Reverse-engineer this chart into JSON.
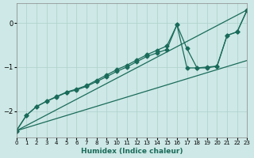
{
  "xlabel": "Humidex (Indice chaleur)",
  "xlim": [
    0,
    23
  ],
  "ylim": [
    -2.6,
    0.45
  ],
  "yticks": [
    0,
    -1,
    -2
  ],
  "xticks": [
    0,
    1,
    2,
    3,
    4,
    5,
    6,
    7,
    8,
    9,
    10,
    11,
    12,
    13,
    14,
    15,
    16,
    17,
    18,
    19,
    20,
    21,
    22,
    23
  ],
  "bg_color": "#cde8e6",
  "line_color": "#1a6b5a",
  "grid_color": "#aed0cc",
  "straight_line1": {
    "x": [
      0,
      23
    ],
    "y": [
      -2.45,
      0.3
    ]
  },
  "straight_line2": {
    "x": [
      0,
      23
    ],
    "y": [
      -2.45,
      -0.85
    ]
  },
  "wiggly1_x": [
    0,
    1,
    2,
    3,
    4,
    5,
    6,
    7,
    8,
    9,
    10,
    11,
    12,
    13,
    14,
    15,
    16,
    17,
    18,
    19,
    20,
    21,
    22,
    23
  ],
  "wiggly1_y": [
    -2.45,
    -2.1,
    -1.9,
    -1.78,
    -1.67,
    -1.57,
    -1.5,
    -1.42,
    -1.3,
    -1.18,
    -1.06,
    -0.96,
    -0.84,
    -0.72,
    -0.62,
    -0.52,
    -0.04,
    -0.58,
    -1.02,
    -1.02,
    -0.98,
    -0.28,
    -0.2,
    0.3
  ],
  "wiggly2_x": [
    0,
    1,
    2,
    3,
    4,
    5,
    6,
    7,
    8,
    9,
    10,
    11,
    12,
    13,
    14,
    15,
    16,
    17,
    18,
    19,
    20,
    21,
    22,
    23
  ],
  "wiggly2_y": [
    -2.45,
    -2.1,
    -1.9,
    -1.78,
    -1.68,
    -1.58,
    -1.52,
    -1.44,
    -1.33,
    -1.22,
    -1.1,
    -1.0,
    -0.88,
    -0.76,
    -0.68,
    -0.6,
    -0.04,
    -1.02,
    -1.02,
    -1.0,
    -0.98,
    -0.28,
    -0.2,
    0.3
  ]
}
